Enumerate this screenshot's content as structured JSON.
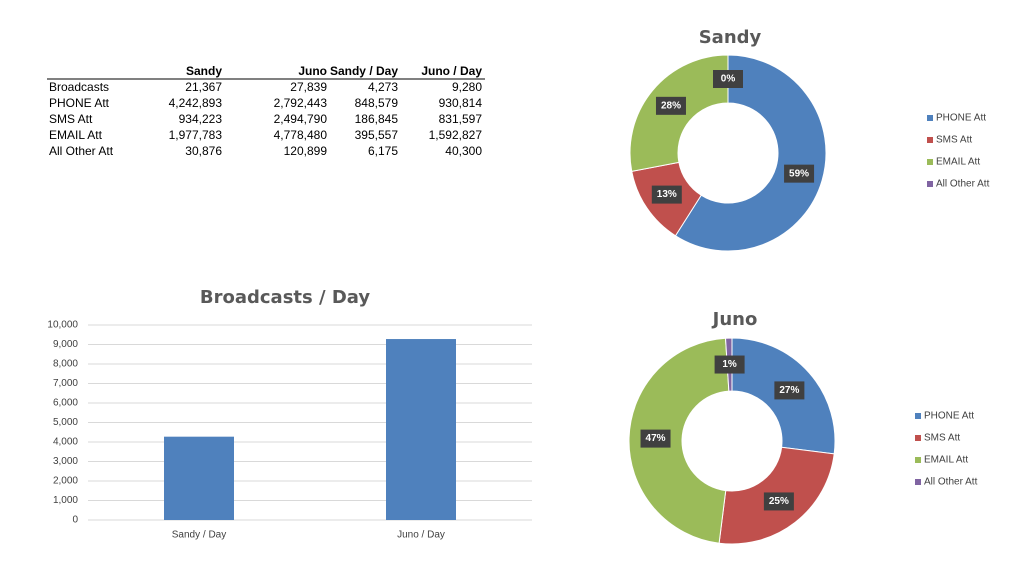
{
  "table": {
    "columns": [
      "Sandy",
      "Juno",
      "Sandy / Day",
      "Juno / Day"
    ],
    "rows": [
      [
        "Broadcasts",
        "21,367",
        "27,839",
        "4,273",
        "9,280"
      ],
      [
        "PHONE Att",
        "4,242,893",
        "2,792,443",
        "848,579",
        "930,814"
      ],
      [
        "SMS Att",
        "934,223",
        "2,494,790",
        "186,845",
        "831,597"
      ],
      [
        "EMAIL Att",
        "1,977,783",
        "4,778,480",
        "395,557",
        "1,592,827"
      ],
      [
        "All Other Att",
        "30,876",
        "120,899",
        "6,175",
        "40,300"
      ]
    ]
  },
  "chart_data": [
    {
      "type": "bar",
      "title": "Broadcasts / Day",
      "categories": [
        "Sandy / Day",
        "Juno / Day"
      ],
      "values": [
        4273,
        9280
      ],
      "color": "#4f81bd",
      "ylim": [
        0,
        10000
      ],
      "yticks": [
        0,
        {
          "value": 1000,
          "label": "1,000"
        },
        {
          "value": 2000,
          "label": "2,000"
        },
        {
          "value": 3000,
          "label": "3,000"
        },
        {
          "value": 4000,
          "label": "4,000"
        },
        {
          "value": 5000,
          "label": "5,000"
        },
        {
          "value": 6000,
          "label": "6,000"
        },
        {
          "value": 7000,
          "label": "7,000"
        },
        {
          "value": 8000,
          "label": "8,000"
        },
        {
          "value": 9000,
          "label": "9,000"
        },
        {
          "value": 10000,
          "label": "10,000"
        }
      ],
      "grid": true
    },
    {
      "type": "donut",
      "title": "Sandy",
      "categories": [
        "PHONE Att",
        "SMS Att",
        "EMAIL Att",
        "All Other Att"
      ],
      "values": [
        59,
        13,
        28,
        0
      ],
      "value_labels": [
        "59%",
        "13%",
        "28%",
        "0%"
      ],
      "colors": [
        "#4f81bd",
        "#c0504d",
        "#9bbb59",
        "#8064a2"
      ],
      "legend": "right"
    },
    {
      "type": "donut",
      "title": "Juno",
      "categories": [
        "PHONE Att",
        "SMS Att",
        "EMAIL Att",
        "All Other Att"
      ],
      "values": [
        27,
        25,
        47,
        1
      ],
      "value_labels": [
        "27%",
        "25%",
        "47%",
        "1%"
      ],
      "colors": [
        "#4f81bd",
        "#c0504d",
        "#9bbb59",
        "#8064a2"
      ],
      "legend": "right"
    }
  ]
}
